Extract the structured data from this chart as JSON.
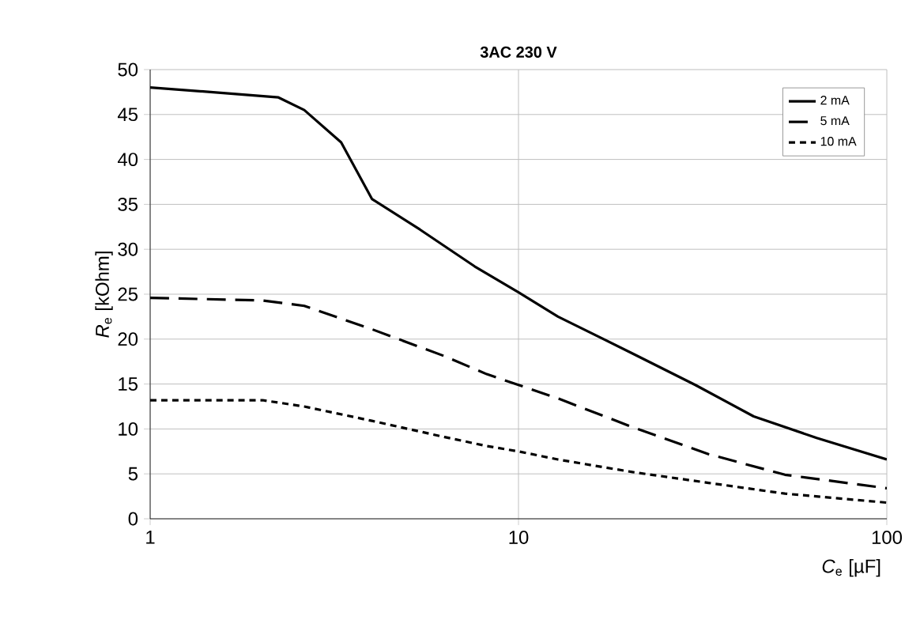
{
  "chart_data": {
    "type": "line",
    "title": "**3AC 230 V**",
    "xlabel": "*C*$_{e}$ [µF]",
    "ylabel": "*R*$_{e}$ [kOhm]",
    "log": "x",
    "grid": true,
    "legend": "top right",
    "marker": "none",
    "xlim": [
      1,
      100
    ],
    "xticks": [
      1,
      10,
      100
    ],
    "ylim": [
      0,
      50
    ],
    "yticks": [
      0,
      5,
      10,
      15,
      20,
      25,
      30,
      35,
      40,
      45,
      50
    ],
    "series": [
      {
        "name": "2 mA",
        "color": "#000000",
        "line_style": "solid",
        "x": [
          1,
          1.46,
          2.23,
          2.62,
          3.3,
          4,
          5.4,
          7.6,
          10,
          12.8,
          20.4,
          30.2,
          43.5,
          64.5,
          100
        ],
        "values": [
          48,
          47.5,
          46.9,
          45.5,
          41.9,
          35.6,
          32.2,
          28.1,
          25.2,
          22.5,
          18.4,
          14.9,
          11.4,
          9.0,
          6.6
        ]
      },
      {
        "name": "5 mA",
        "color": "#000000",
        "line_style": "dashed",
        "x": [
          1,
          2.02,
          2.62,
          4,
          6.3,
          8.2,
          10,
          12.8,
          20.4,
          32.8,
          52.9,
          100
        ],
        "values": [
          24.6,
          24.3,
          23.7,
          21.1,
          18.1,
          16.1,
          14.9,
          13.4,
          10.2,
          7.2,
          4.9,
          3.4
        ]
      },
      {
        "name": "10 mA",
        "color": "#000000",
        "line_style": "dotted",
        "x": [
          1,
          2.02,
          2.62,
          4,
          6.3,
          8.2,
          10,
          12.8,
          20.4,
          32.8,
          52.9,
          100
        ],
        "values": [
          13.2,
          13.2,
          12.5,
          10.9,
          9.1,
          8.1,
          7.5,
          6.6,
          5.2,
          4.0,
          2.8,
          1.8
        ]
      }
    ]
  }
}
